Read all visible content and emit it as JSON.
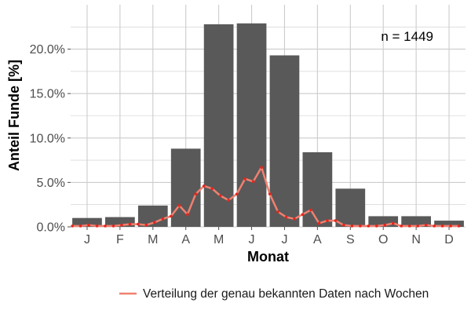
{
  "chart_data": {
    "type": "bar",
    "xlabel": "Monat",
    "ylabel": "Anteil Funde [%]",
    "categories": [
      "J",
      "F",
      "M",
      "A",
      "M",
      "J",
      "J",
      "A",
      "S",
      "O",
      "N",
      "D"
    ],
    "values": [
      1.0,
      1.1,
      2.4,
      8.8,
      22.8,
      22.9,
      19.3,
      8.4,
      4.3,
      1.2,
      1.2,
      0.7
    ],
    "ylim": [
      0,
      25
    ],
    "yticks": [
      0,
      5,
      10,
      15,
      20
    ],
    "ytick_labels": [
      "0.0%",
      "5.0%",
      "10.0%",
      "15.0%",
      "20.0%"
    ],
    "grid": true,
    "annotation": "n = 1449",
    "colors": {
      "bar": "#595959",
      "line": "#f08070",
      "points": "#e8251c",
      "grid": "#cccccc",
      "panel": "#ffffff"
    },
    "line_series": {
      "name": "Verteilung der genau bekannten Daten nach Wochen",
      "x": [
        0.05,
        0.3,
        0.55,
        0.8,
        1.05,
        1.3,
        1.55,
        1.8,
        2.05,
        2.3,
        2.55,
        2.8,
        3.05,
        3.3,
        3.55,
        3.8,
        4.05,
        4.3,
        4.55,
        4.8,
        5.05,
        5.3,
        5.55,
        5.8,
        6.05,
        6.3,
        6.55,
        6.8,
        7.05,
        7.3,
        7.55,
        7.8,
        8.05,
        8.3,
        8.55,
        8.8,
        9.05,
        9.3,
        9.55,
        9.8,
        10.05,
        10.3,
        10.55,
        10.8,
        11.05,
        11.3,
        11.55,
        11.8
      ],
      "values": [
        0.1,
        0.1,
        0.2,
        0.1,
        0.1,
        0.1,
        0.2,
        0.3,
        0.3,
        0.2,
        0.5,
        0.9,
        1.2,
        2.4,
        1.4,
        3.7,
        4.6,
        4.3,
        3.5,
        3.0,
        3.7,
        5.4,
        5.1,
        6.7,
        3.7,
        1.7,
        1.1,
        0.9,
        1.4,
        1.9,
        0.4,
        0.7,
        0.7,
        0.2,
        0.1,
        0.1,
        0.1,
        0.1,
        0.2,
        0.4,
        0.1,
        0.1,
        0.1,
        0.2,
        0.1,
        0.1,
        0.1,
        0.1
      ]
    }
  }
}
